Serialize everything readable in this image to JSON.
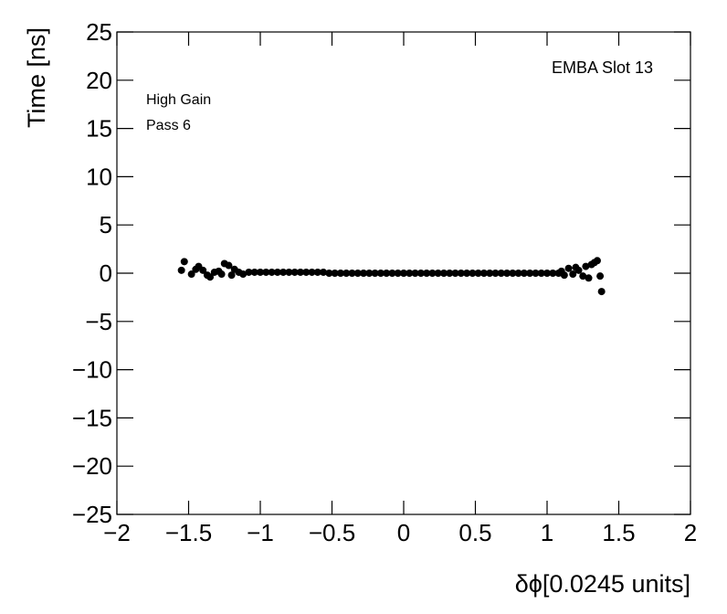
{
  "chart_data": {
    "type": "scatter",
    "title": "EMBA Slot 13",
    "annotations": [
      "High Gain",
      "Pass 6"
    ],
    "x_label": "δϕ[0.0245 units]",
    "y_label": "Time [ns]",
    "color": "#000000",
    "x": [
      -1.55,
      -1.53,
      -1.48,
      -1.45,
      -1.43,
      -1.4,
      -1.37,
      -1.35,
      -1.32,
      -1.29,
      -1.27,
      -1.25,
      -1.22,
      -1.2,
      -1.18,
      -1.15,
      -1.12,
      -1.08,
      -1.04,
      -1.0,
      -0.96,
      -0.92,
      -0.88,
      -0.84,
      -0.8,
      -0.76,
      -0.72,
      -0.68,
      -0.64,
      -0.6,
      -0.56,
      -0.52,
      -0.48,
      -0.44,
      -0.4,
      -0.36,
      -0.32,
      -0.28,
      -0.24,
      -0.2,
      -0.16,
      -0.12,
      -0.08,
      -0.04,
      0,
      0.04,
      0.08,
      0.12,
      0.16,
      0.2,
      0.24,
      0.28,
      0.32,
      0.36,
      0.4,
      0.44,
      0.48,
      0.52,
      0.56,
      0.6,
      0.64,
      0.68,
      0.72,
      0.76,
      0.8,
      0.84,
      0.88,
      0.92,
      0.96,
      1.0,
      1.04,
      1.08,
      1.1,
      1.12,
      1.15,
      1.18,
      1.2,
      1.22,
      1.25,
      1.27,
      1.29,
      1.31,
      1.33,
      1.35,
      1.37,
      1.38
    ],
    "values": [
      0.3,
      1.2,
      -0.1,
      0.4,
      0.7,
      0.3,
      -0.2,
      -0.4,
      0.1,
      0.2,
      -0.1,
      1.0,
      0.8,
      -0.2,
      0.4,
      0.1,
      -0.1,
      0.1,
      0.1,
      0.1,
      0.1,
      0.1,
      0.1,
      0.1,
      0.1,
      0.1,
      0.1,
      0.1,
      0.1,
      0.1,
      0.1,
      0,
      0,
      0,
      0,
      0,
      0,
      0,
      0,
      0,
      0,
      0,
      0,
      0,
      0,
      0,
      0,
      0,
      0,
      0,
      0,
      0,
      0,
      0,
      0,
      0,
      0,
      0,
      0,
      0,
      0,
      0,
      0,
      0,
      0,
      0,
      0,
      0,
      0,
      0,
      0,
      0,
      0.2,
      -0.2,
      0.5,
      -0.1,
      0.6,
      0.3,
      -0.3,
      0.7,
      -0.5,
      0.9,
      1.1,
      1.3,
      -0.3,
      -1.9
    ],
    "xlim": [
      -2,
      2
    ],
    "ylim": [
      -25,
      25
    ],
    "xticks": [
      {
        "value": -2,
        "label": "−2"
      },
      {
        "value": -1.5,
        "label": "−1.5"
      },
      {
        "value": -1,
        "label": "−1"
      },
      {
        "value": -0.5,
        "label": "−0.5"
      },
      0,
      0.5,
      1,
      1.5,
      2
    ],
    "yticks": [
      {
        "value": -25,
        "label": "−25"
      },
      {
        "value": -20,
        "label": "−20"
      },
      {
        "value": -15,
        "label": "−15"
      },
      {
        "value": -10,
        "label": "−10"
      },
      {
        "value": -5,
        "label": "−5"
      },
      0,
      5,
      10,
      15,
      20,
      25
    ]
  }
}
